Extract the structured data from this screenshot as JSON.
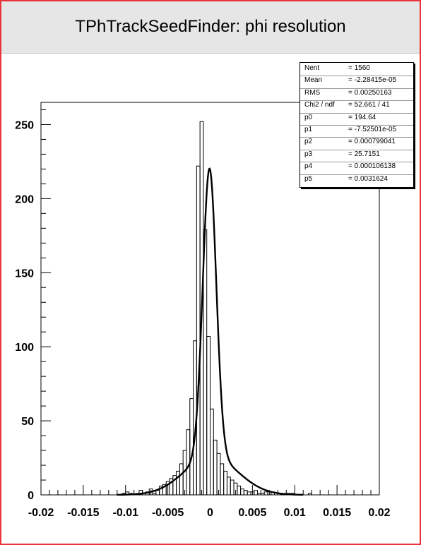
{
  "title": "TPhTrackSeedFinder: phi resolution",
  "stats": [
    {
      "key": "Nent",
      "value": "= 1560"
    },
    {
      "key": "Mean",
      "value": "= -2.28415e-05"
    },
    {
      "key": "RMS",
      "value": "= 0.00250163"
    },
    {
      "key": "Chi2 / ndf",
      "value": "= 52.661 / 41"
    },
    {
      "key": "p0",
      "value": "= 194.64"
    },
    {
      "key": "p1",
      "value": "= -7.52501e-05"
    },
    {
      "key": "p2",
      "value": "= 0.000799041"
    },
    {
      "key": "p3",
      "value": "= 25.7151"
    },
    {
      "key": "p4",
      "value": "= 0.000106138"
    },
    {
      "key": "p5",
      "value": "= 0.0031624"
    }
  ],
  "chart_data": {
    "type": "histogram",
    "title": "TPhTrackSeedFinder: phi resolution",
    "xlim": [
      -0.02,
      0.02
    ],
    "ylim": [
      0,
      265
    ],
    "x_tick_labels": [
      "-0.02",
      "-0.015",
      "-0.01",
      "-0.005",
      "0",
      "0.005",
      "0.01",
      "0.015",
      "0.02"
    ],
    "x_ticks": [
      -0.02,
      -0.015,
      -0.01,
      -0.005,
      0,
      0.005,
      0.01,
      0.015,
      0.02
    ],
    "y_tick_labels": [
      "0",
      "50",
      "100",
      "150",
      "200",
      "250"
    ],
    "y_ticks": [
      0,
      50,
      100,
      150,
      200,
      250
    ],
    "bin_width": 0.0004,
    "bin_start": -0.02,
    "counts": [
      0,
      0,
      0,
      0,
      0,
      0,
      0,
      0,
      0,
      0,
      0,
      0,
      0,
      0,
      0,
      0,
      0,
      0,
      0,
      0,
      0,
      0,
      0,
      0,
      1,
      2,
      1,
      0,
      1,
      3,
      1,
      2,
      4,
      1,
      3,
      6,
      7,
      9,
      11,
      13,
      16,
      21,
      30,
      44,
      65,
      104,
      222,
      252,
      179,
      107,
      58,
      37,
      28,
      21,
      16,
      12,
      10,
      8,
      6,
      4,
      3,
      2,
      2,
      3,
      1,
      1,
      2,
      2,
      2,
      0,
      0,
      0,
      1,
      1,
      1,
      0,
      0,
      0,
      0,
      1,
      0,
      0,
      0,
      0,
      0,
      0,
      0,
      0,
      0,
      0,
      0,
      0,
      0,
      0,
      0,
      0,
      0,
      0,
      0,
      0
    ],
    "fit": {
      "p0": 194.64,
      "p1": -7.52501e-05,
      "p2": 0.000799041,
      "p3": 25.7151,
      "p4": 0.000106138,
      "p5": 0.0031624
    }
  }
}
